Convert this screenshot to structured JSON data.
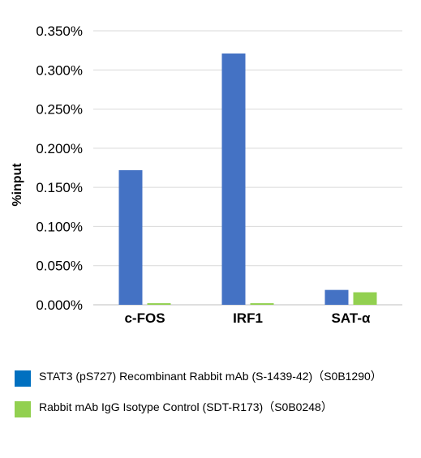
{
  "chart_data": {
    "type": "bar",
    "categories": [
      "c-FOS",
      "IRF1",
      "SAT-α"
    ],
    "series": [
      {
        "name": "STAT3 (pS727) Recombinant Rabbit mAb (S-1439-42)（S0B1290）",
        "color": "#4472C4",
        "values": [
          0.172,
          0.321,
          0.019
        ]
      },
      {
        "name": "Rabbit mAb IgG Isotype Control (SDT-R173)（S0B0248）",
        "color": "#92D050",
        "values": [
          0.002,
          0.002,
          0.016
        ]
      }
    ],
    "ylabel": "%input",
    "xlabel": "",
    "ylim": [
      0,
      0.35
    ],
    "yticks": [
      "0.000%",
      "0.050%",
      "0.100%",
      "0.150%",
      "0.200%",
      "0.250%",
      "0.300%",
      "0.350%"
    ],
    "ytick_values": [
      0,
      0.05,
      0.1,
      0.15,
      0.2,
      0.25,
      0.3,
      0.35
    ],
    "grid": true,
    "legend_position": "bottom"
  },
  "legend_swatch_colors": {
    "series_1": "#0070C0",
    "series_2": "#92D050"
  }
}
